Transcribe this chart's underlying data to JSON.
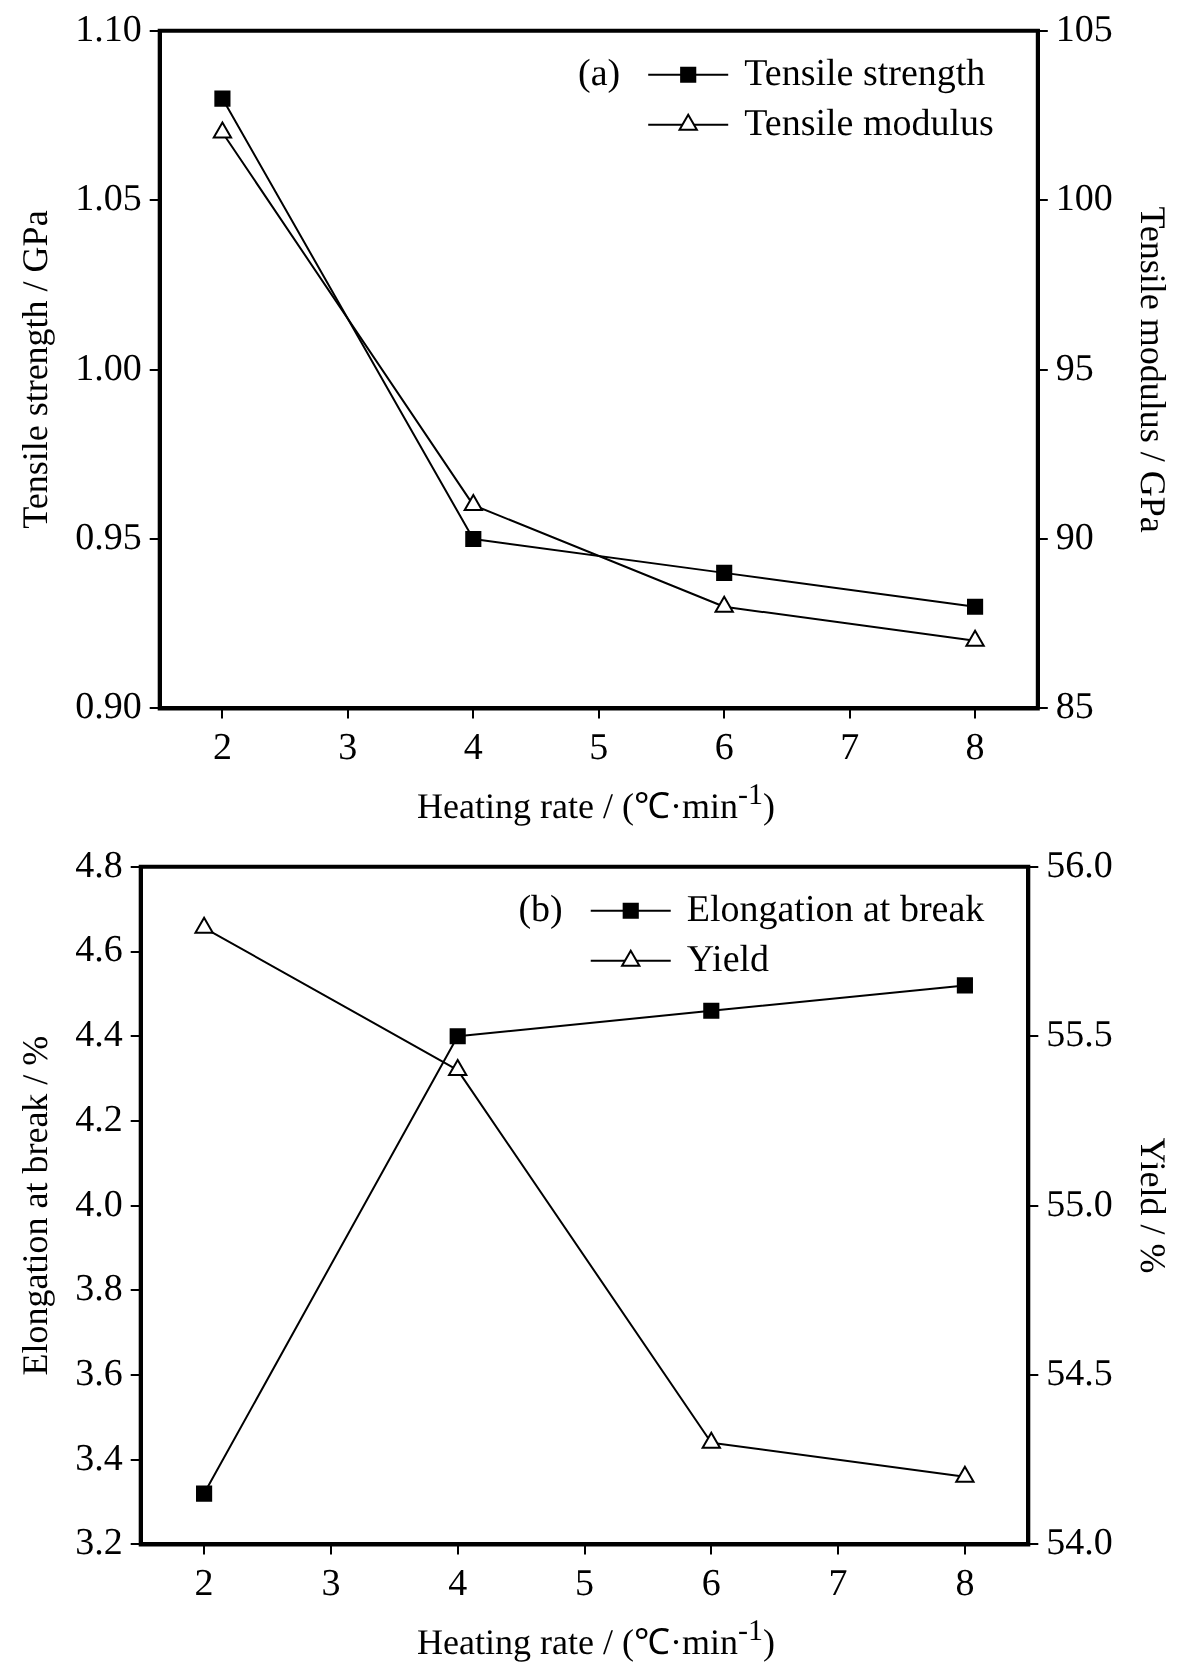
{
  "chart_data": [
    {
      "type": "line",
      "x": [
        2,
        4,
        6,
        8
      ],
      "xlabel": "Heating rate / (℃·min$^{-1}$)",
      "ylabel": "Tensile strength / GPa",
      "y2label": "Tensile modulus / GPa",
      "annotations": [
        "(a)"
      ],
      "legend": "top right",
      "grid": false,
      "line_style": "solid",
      "xlim": [
        1.5,
        8.5
      ],
      "xticks": [
        2,
        3,
        4,
        5,
        6,
        7,
        8
      ],
      "ylim": [
        0.9,
        1.1
      ],
      "yticks": [
        {
          "value": 0.9,
          "label": "0.90"
        },
        {
          "value": 0.95,
          "label": "0.95"
        },
        {
          "value": 1.0,
          "label": "1.00"
        },
        {
          "value": 1.05,
          "label": "1.05"
        },
        {
          "value": 1.1,
          "label": "1.10"
        }
      ],
      "y2lim": [
        85,
        105
      ],
      "y2ticks": [
        85,
        90,
        95,
        100,
        105
      ],
      "series": [
        {
          "name": "Tensile strength",
          "color": "#000000",
          "marker": "square",
          "values": [
            1.08,
            0.95,
            0.94,
            0.93
          ]
        },
        {
          "name": "Tensile modulus",
          "color": "#000000",
          "marker": "triangle",
          "axis": "y2",
          "values": [
            102,
            91,
            88,
            87
          ]
        }
      ]
    },
    {
      "type": "line",
      "x": [
        2,
        4,
        6,
        8
      ],
      "xlabel": "Heating rate / (℃·min$^{-1}$)",
      "ylabel": "Elongation at break / %",
      "y2label": "Yield / %",
      "annotations": [
        "(b)"
      ],
      "legend": "top right",
      "grid": false,
      "line_style": "solid",
      "xlim": [
        1.5,
        8.5
      ],
      "xticks": [
        2,
        3,
        4,
        5,
        6,
        7,
        8
      ],
      "ylim": [
        3.2,
        4.8
      ],
      "yticks": [
        {
          "value": 3.2,
          "label": "3.2"
        },
        {
          "value": 3.4,
          "label": "3.4"
        },
        {
          "value": 3.6,
          "label": "3.6"
        },
        {
          "value": 3.8,
          "label": "3.8"
        },
        {
          "value": 4.0,
          "label": "4.0"
        },
        {
          "value": 4.2,
          "label": "4.2"
        },
        {
          "value": 4.4,
          "label": "4.4"
        },
        {
          "value": 4.6,
          "label": "4.6"
        },
        {
          "value": 4.8,
          "label": "4.8"
        }
      ],
      "y2lim": [
        54,
        56
      ],
      "y2ticks": [
        {
          "value": 54,
          "label": "54.0"
        },
        {
          "value": 54.5,
          "label": "54.5"
        },
        {
          "value": 55,
          "label": "55.0"
        },
        {
          "value": 55.5,
          "label": "55.5"
        },
        {
          "value": 56,
          "label": "56.0"
        }
      ],
      "series": [
        {
          "name": "Elongation at break",
          "color": "#000000",
          "marker": "square",
          "values": [
            3.32,
            4.4,
            4.46,
            4.52
          ]
        },
        {
          "name": "Yield",
          "color": "#000000",
          "marker": "triangle",
          "axis": "y2",
          "values": [
            55.82,
            55.4,
            54.3,
            54.2
          ]
        }
      ]
    }
  ]
}
